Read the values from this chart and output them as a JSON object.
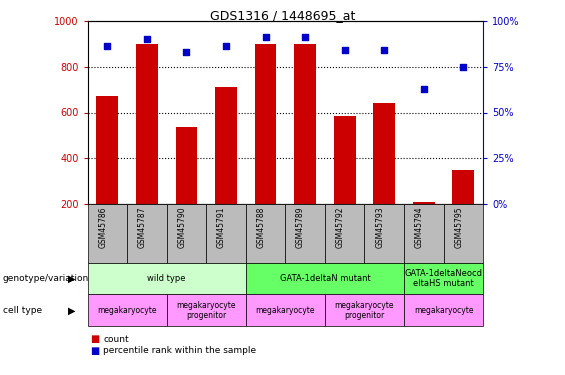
{
  "title": "GDS1316 / 1448695_at",
  "samples": [
    "GSM45786",
    "GSM45787",
    "GSM45790",
    "GSM45791",
    "GSM45788",
    "GSM45789",
    "GSM45792",
    "GSM45793",
    "GSM45794",
    "GSM45795"
  ],
  "counts": [
    670,
    900,
    535,
    710,
    900,
    900,
    585,
    640,
    210,
    350
  ],
  "percentiles": [
    86,
    90,
    83,
    86,
    91,
    91,
    84,
    84,
    63,
    75
  ],
  "bar_color": "#CC0000",
  "dot_color": "#0000CC",
  "ylim_left": [
    200,
    1000
  ],
  "ylim_right": [
    0,
    100
  ],
  "yticks_left": [
    200,
    400,
    600,
    800,
    1000
  ],
  "yticks_right": [
    0,
    25,
    50,
    75,
    100
  ],
  "grid_values": [
    400,
    600,
    800
  ],
  "genotype_groups": [
    {
      "label": "wild type",
      "start": 0,
      "end": 4,
      "color": "#CCFFCC"
    },
    {
      "label": "GATA-1deltaN mutant",
      "start": 4,
      "end": 8,
      "color": "#66FF66"
    },
    {
      "label": "GATA-1deltaNeocd\neltaHS mutant",
      "start": 8,
      "end": 10,
      "color": "#66FF66"
    }
  ],
  "cell_type_groups": [
    {
      "label": "megakaryocyte",
      "start": 0,
      "end": 2,
      "color": "#FF99FF"
    },
    {
      "label": "megakaryocyte\nprogenitor",
      "start": 2,
      "end": 4,
      "color": "#FF99FF"
    },
    {
      "label": "megakaryocyte",
      "start": 4,
      "end": 6,
      "color": "#FF99FF"
    },
    {
      "label": "megakaryocyte\nprogenitor",
      "start": 6,
      "end": 8,
      "color": "#FF99FF"
    },
    {
      "label": "megakaryocyte",
      "start": 8,
      "end": 10,
      "color": "#FF99FF"
    }
  ],
  "left_label_genotype": "genotype/variation",
  "left_label_celltype": "cell type",
  "legend_count_label": "count",
  "legend_pct_label": "percentile rank within the sample",
  "left_axis_color": "#CC0000",
  "right_axis_color": "#0000CC",
  "sample_box_color": "#BBBBBB",
  "background_color": "#ffffff"
}
